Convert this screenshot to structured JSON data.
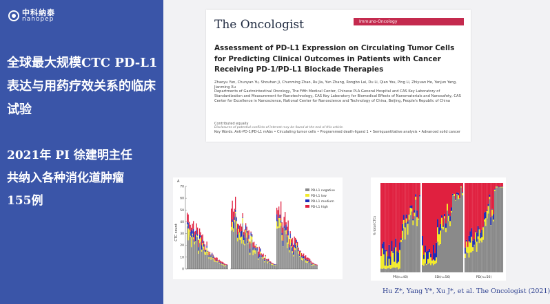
{
  "left_panel": {
    "logo": {
      "cn": "中科纳泰",
      "en": "nanopep"
    },
    "title": "全球最大规模CTC PD-L1表达与用药疗效关系的临床试验",
    "subtitle": "2021年  PI 徐建明主任\n共纳入各种消化道肿瘤\n155例"
  },
  "paper": {
    "journal": "The Oncologist",
    "section": "Immuno-Oncology",
    "title": "Assessment of PD-L1 Expression on Circulating Tumor Cells for Predicting Clinical Outcomes in Patients with Cancer Receiving PD-1/PD-L1 Blockade Therapies",
    "authors": "Zhaoyu Yun, Chunyan Yu, Shouhan Ji, Chunming Zhao, Ru Jia, Yun Zhang, Rongbo Lai, Du Li, Qian You, Ping Li, Zhiyuan He, Yanjun Yang, Jianming Xu",
    "affiliations": "Departments of Gastrointestinal Oncology, The Fifth Medical Center, Chinese PLA General Hospital and CAS Key Laboratory of Standardization and Measurement for Nanotechnology, CAS Key Laboratory for Biomedical Effects of Nanomaterials and Nanosafety, CAS Center for Excellence in Nanoscience, National Center for Nanoscience and Technology of China, Beijing, People's Republic of China",
    "note1": "Contributed equally",
    "note2": "Disclosures of potential conflicts of interest may be found at the end of this article.",
    "keywords": "Key Words.  Anti-PD-1/PD-L1 mAbs  •  Circulating tumor cells  •  Programmed death-ligand 1  •  Semiquantitative analysis  •  Advanced solid cancer"
  },
  "figure_a": {
    "label": "A",
    "ylabel": "CTC count",
    "yticks": [
      "70",
      "60",
      "50",
      "40",
      "30",
      "20",
      "10",
      "0"
    ],
    "legend": [
      "PD-L1 negative",
      "PD-L1 low",
      "PD-L1 medium",
      "PD-L1 high"
    ]
  },
  "figure_b": {
    "ylabel": "% total CTCs",
    "groups": [
      "PR(n=40)",
      "SD(n=56)",
      "PD(n=56)"
    ]
  },
  "colors": {
    "negative": "#8a8a8a",
    "low": "#f2ea2a",
    "medium": "#1d2bb8",
    "high": "#e0203f",
    "panel": "#3a55a8"
  },
  "citation": "Hu Z*, Yang Y*, Xu J*, et al. The Oncologist (2021)"
}
